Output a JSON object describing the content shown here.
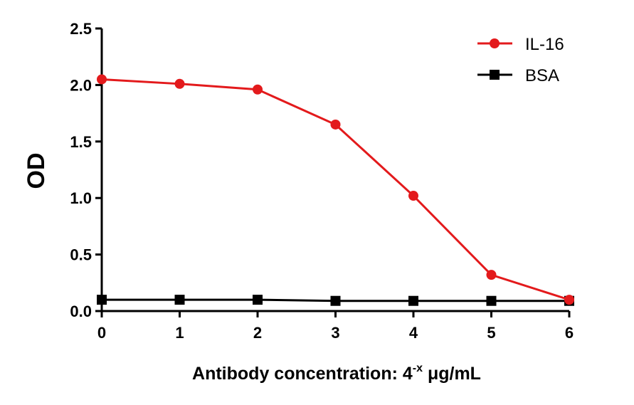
{
  "chart_data": {
    "type": "line",
    "xlabel": "Antibody concentration: 4",
    "xlabel_superscript": "-x",
    "xlabel_unit": " μg/mL",
    "ylabel": "OD",
    "x": [
      0,
      1,
      2,
      3,
      4,
      5,
      6
    ],
    "x_ticks": [
      "0",
      "1",
      "2",
      "3",
      "4",
      "5",
      "6"
    ],
    "y_ticks": [
      "0.0",
      "0.5",
      "1.0",
      "1.5",
      "2.0",
      "2.5"
    ],
    "xlim": [
      0,
      6
    ],
    "ylim": [
      0,
      2.5
    ],
    "grid": false,
    "legend_position": "top-right",
    "series": [
      {
        "name": "IL-16",
        "color": "#e31a1c",
        "marker": "circle",
        "values": [
          2.05,
          2.01,
          1.96,
          1.65,
          1.02,
          0.32,
          0.1
        ]
      },
      {
        "name": "BSA",
        "color": "#000000",
        "marker": "square",
        "values": [
          0.1,
          0.1,
          0.1,
          0.09,
          0.09,
          0.09,
          0.09
        ]
      }
    ]
  }
}
